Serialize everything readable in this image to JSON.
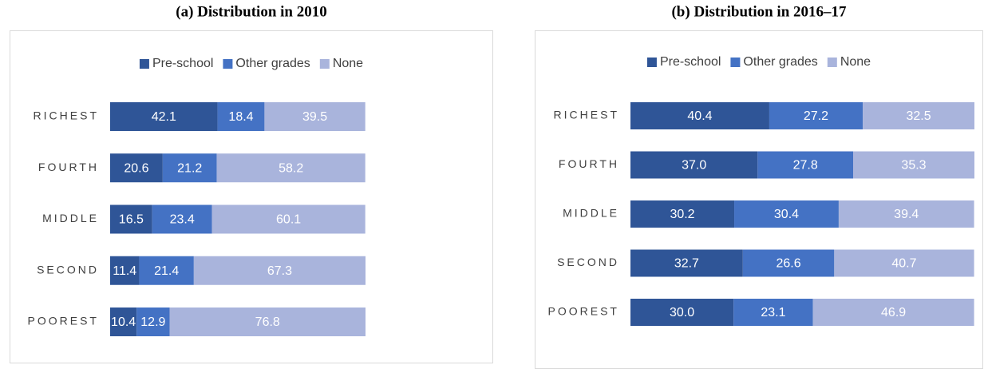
{
  "chart_data": {
    "charts": [
      {
        "type": "bar",
        "orientation": "horizontal",
        "stacked": true,
        "title": "(a)  Distribution in 2010",
        "categories": [
          "RICHEST",
          "FOURTH",
          "MIDDLE",
          "SECOND",
          "POOREST"
        ],
        "series": [
          {
            "name": "Pre-school",
            "color": "#2f5597",
            "values": [
              42.1,
              20.6,
              16.5,
              11.4,
              10.4
            ]
          },
          {
            "name": "Other grades",
            "color": "#4472c4",
            "values": [
              18.4,
              21.2,
              23.4,
              21.4,
              12.9
            ]
          },
          {
            "name": "None",
            "color": "#a9b4dc",
            "values": [
              39.5,
              58.2,
              60.1,
              67.3,
              76.8
            ]
          }
        ],
        "legend": "top"
      },
      {
        "type": "bar",
        "orientation": "horizontal",
        "stacked": true,
        "title": "(b)  Distribution in 2016–17",
        "categories": [
          "RICHEST",
          "FOURTH",
          "MIDDLE",
          "SECOND",
          "POOREST"
        ],
        "series": [
          {
            "name": "Pre-school",
            "color": "#2f5597",
            "values": [
              40.4,
              37.0,
              30.2,
              32.7,
              30.0
            ],
            "value_labels": [
              "40.4",
              "37.0",
              "30.2",
              "32.7",
              "30.0"
            ]
          },
          {
            "name": "Other grades",
            "color": "#4472c4",
            "values": [
              27.2,
              27.8,
              30.4,
              26.6,
              23.1
            ]
          },
          {
            "name": "None",
            "color": "#a9b4dc",
            "values": [
              32.5,
              35.3,
              39.4,
              40.7,
              46.9
            ]
          }
        ],
        "legend": "top"
      }
    ]
  }
}
